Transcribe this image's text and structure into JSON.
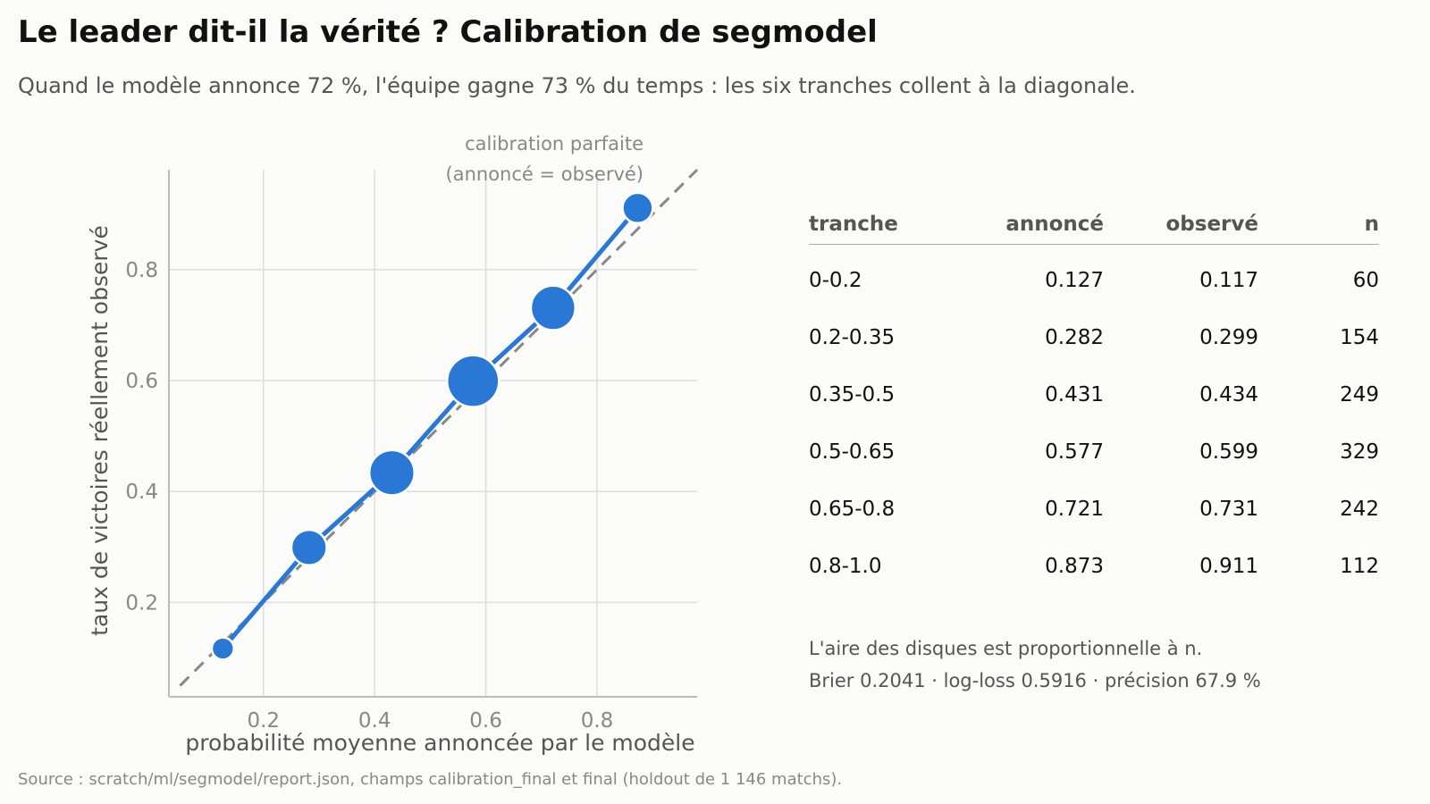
{
  "title": "Le leader dit-il la vérité ? Calibration de segmodel",
  "subtitle": "Quand le modèle annonce 72 %, l'équipe gagne 73 % du temps : les six tranches collent à la diagonale.",
  "colors": {
    "point": "#2a78d6",
    "diagonal": "#888888",
    "grid": "#dddddd",
    "axis": "#bbbbbb",
    "background": "#fbfbfa"
  },
  "chart_data": {
    "type": "scatter",
    "title": "",
    "xlabel": "probabilité moyenne annoncée par le modèle",
    "ylabel": "taux de victoires réellement observé",
    "xlim": [
      0.03,
      0.98
    ],
    "ylim": [
      0.03,
      0.98
    ],
    "xticks": [
      "0.2",
      "0.4",
      "0.6",
      "0.8"
    ],
    "yticks": [
      "0.2",
      "0.4",
      "0.6",
      "0.8"
    ],
    "grid": true,
    "diagonal_label_line1": "calibration parfaite",
    "diagonal_label_line2": "(annoncé = observé)",
    "points": [
      {
        "x": 0.127,
        "y": 0.117,
        "n": 60
      },
      {
        "x": 0.282,
        "y": 0.299,
        "n": 154
      },
      {
        "x": 0.431,
        "y": 0.434,
        "n": 249
      },
      {
        "x": 0.577,
        "y": 0.599,
        "n": 329
      },
      {
        "x": 0.721,
        "y": 0.731,
        "n": 242
      },
      {
        "x": 0.873,
        "y": 0.911,
        "n": 112
      }
    ]
  },
  "table": {
    "headers": {
      "tranche": "tranche",
      "announced": "annoncé",
      "observed": "observé",
      "n": "n"
    },
    "rows": [
      {
        "tranche": "0-0.2",
        "announced": "0.127",
        "observed": "0.117",
        "n": "60"
      },
      {
        "tranche": "0.2-0.35",
        "announced": "0.282",
        "observed": "0.299",
        "n": "154"
      },
      {
        "tranche": "0.35-0.5",
        "announced": "0.431",
        "observed": "0.434",
        "n": "249"
      },
      {
        "tranche": "0.5-0.65",
        "announced": "0.577",
        "observed": "0.599",
        "n": "329"
      },
      {
        "tranche": "0.65-0.8",
        "announced": "0.721",
        "observed": "0.731",
        "n": "242"
      },
      {
        "tranche": "0.8-1.0",
        "announced": "0.873",
        "observed": "0.911",
        "n": "112"
      }
    ]
  },
  "note_line1": "L'aire des disques est proportionnelle à n.",
  "note_line2": "Brier 0.2041 · log-loss 0.5916 · précision 67.9 %",
  "source": "Source : scratch/ml/segmodel/report.json, champs calibration_final et final (holdout de 1 146 matchs)."
}
